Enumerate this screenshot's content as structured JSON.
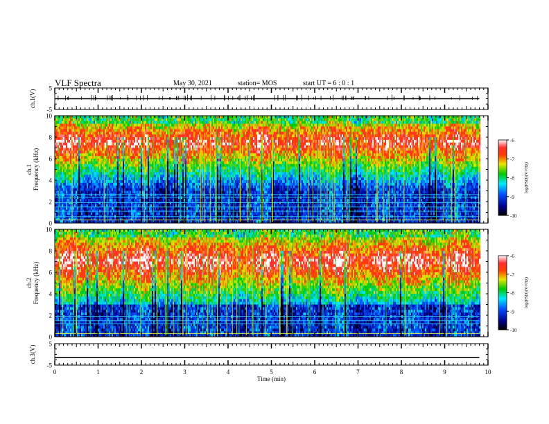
{
  "header": {
    "title": "VLF Spectra",
    "date": "May 30, 2021",
    "station": "station= MOS",
    "start": "start  UT  =   6  : 0   : 1"
  },
  "chart_data": [
    {
      "type": "line",
      "panel": "ch1-voltage",
      "ylabel": "ch.1(V)",
      "ylim": [
        -5,
        5
      ],
      "yticks": [
        "5",
        "-5"
      ],
      "xlim": [
        0,
        10
      ],
      "series": [
        {
          "x": [
            0,
            9.8
          ],
          "values": [
            0,
            0
          ]
        }
      ]
    },
    {
      "type": "heatmap",
      "panel": "ch1-spectrogram",
      "ylabel_top": "ch.1",
      "ylabel": "Frequency (kHz)",
      "ylim": [
        0,
        10
      ],
      "yticks": [
        "0",
        "2",
        "4",
        "6",
        "8",
        "10"
      ],
      "xlim": [
        0,
        10
      ],
      "data_end_min": 9.8,
      "colorbar": {
        "label": "log(PSD)(V²/Hz)",
        "range": [
          -10,
          -6
        ],
        "ticks": [
          "-6",
          "-7",
          "-8",
          "-9",
          "-10"
        ]
      }
    },
    {
      "type": "heatmap",
      "panel": "ch2-spectrogram",
      "ylabel_top": "ch.2",
      "ylabel": "Frequency (kHz)",
      "ylim": [
        0,
        10
      ],
      "yticks": [
        "0",
        "2",
        "4",
        "6",
        "8",
        "10"
      ],
      "xlim": [
        0,
        10
      ],
      "data_end_min": 9.8,
      "colorbar": {
        "label": "log(PSD)(V²/Hz)",
        "range": [
          -10,
          -6
        ],
        "ticks": [
          "-6",
          "-7",
          "-8",
          "-9",
          "-10"
        ]
      }
    },
    {
      "type": "line",
      "panel": "ch3-voltage",
      "ylabel": "ch.3(V)",
      "ylim": [
        -5,
        5
      ],
      "yticks": [
        "5",
        "-5"
      ],
      "xlim": [
        0,
        10
      ],
      "xlabel": "Time  (min)",
      "xticks": [
        "0",
        "1",
        "2",
        "3",
        "4",
        "5",
        "6",
        "7",
        "8",
        "9",
        "10"
      ],
      "series": [
        {
          "x": [
            0,
            9.8
          ],
          "values": [
            -1.5,
            -1.5
          ]
        }
      ]
    }
  ]
}
